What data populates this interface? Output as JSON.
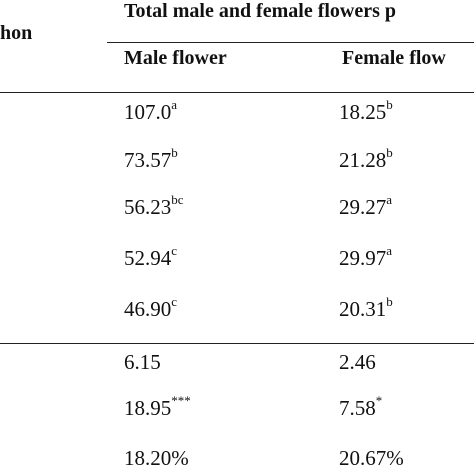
{
  "header": {
    "left_title_fragment": "hon",
    "group_title": "Total male and female flowers p",
    "col_male": "Male flower",
    "col_female": "Female flow"
  },
  "rows": [
    {
      "male": "107.0",
      "male_sup": "a",
      "female": "18.25",
      "female_sup": "b"
    },
    {
      "male": "73.57",
      "male_sup": "b",
      "female": "21.28",
      "female_sup": "b"
    },
    {
      "male": "56.23",
      "male_sup": "bc",
      "female": "29.27",
      "female_sup": "a"
    },
    {
      "male": "52.94",
      "male_sup": "c",
      "female": "29.97",
      "female_sup": "a"
    },
    {
      "male": "46.90",
      "male_sup": "c",
      "female": "20.31",
      "female_sup": "b"
    }
  ],
  "stats": [
    {
      "male": "6.15",
      "male_sup": "",
      "female": "2.46",
      "female_sup": ""
    },
    {
      "male": "18.95",
      "male_sup": "***",
      "female": "7.58",
      "female_sup": "*"
    },
    {
      "male": "18.20%",
      "male_sup": "",
      "female": "20.67%",
      "female_sup": ""
    }
  ]
}
